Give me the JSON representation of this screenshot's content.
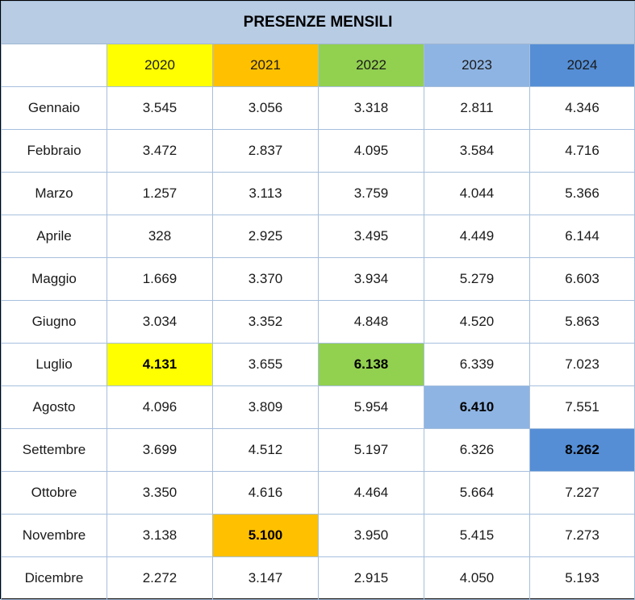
{
  "title": "PRESENZE MENSILI",
  "colors": {
    "title_bg": "#b8cce4",
    "year_2020": "#ffff00",
    "year_2021": "#ffc000",
    "year_2022": "#92d050",
    "year_2023": "#8eb4e3",
    "year_2024": "#558ed5",
    "grid": "#a6bfdd"
  },
  "years": [
    "2020",
    "2021",
    "2022",
    "2023",
    "2024"
  ],
  "rows": [
    {
      "month": "Gennaio",
      "values": [
        "3.545",
        "3.056",
        "3.318",
        "2.811",
        "4.346"
      ]
    },
    {
      "month": "Febbraio",
      "values": [
        "3.472",
        "2.837",
        "4.095",
        "3.584",
        "4.716"
      ]
    },
    {
      "month": "Marzo",
      "values": [
        "1.257",
        "3.113",
        "3.759",
        "4.044",
        "5.366"
      ]
    },
    {
      "month": "Aprile",
      "values": [
        "328",
        "2.925",
        "3.495",
        "4.449",
        "6.144"
      ]
    },
    {
      "month": "Maggio",
      "values": [
        "1.669",
        "3.370",
        "3.934",
        "5.279",
        "6.603"
      ]
    },
    {
      "month": "Giugno",
      "values": [
        "3.034",
        "3.352",
        "4.848",
        "4.520",
        "5.863"
      ]
    },
    {
      "month": "Luglio",
      "values": [
        "4.131",
        "3.655",
        "6.138",
        "6.339",
        "7.023"
      ]
    },
    {
      "month": "Agosto",
      "values": [
        "4.096",
        "3.809",
        "5.954",
        "6.410",
        "7.551"
      ]
    },
    {
      "month": "Settembre",
      "values": [
        "3.699",
        "4.512",
        "5.197",
        "6.326",
        "8.262"
      ]
    },
    {
      "month": "Ottobre",
      "values": [
        "3.350",
        "4.616",
        "4.464",
        "5.664",
        "7.227"
      ]
    },
    {
      "month": "Novembre",
      "values": [
        "3.138",
        "5.100",
        "3.950",
        "5.415",
        "7.273"
      ]
    },
    {
      "month": "Dicembre",
      "values": [
        "2.272",
        "3.147",
        "2.915",
        "4.050",
        "5.193"
      ]
    }
  ],
  "highlights": [
    {
      "month": "Luglio",
      "year": "2020"
    },
    {
      "month": "Novembre",
      "year": "2021"
    },
    {
      "month": "Luglio",
      "year": "2022"
    },
    {
      "month": "Agosto",
      "year": "2023"
    },
    {
      "month": "Settembre",
      "year": "2024"
    }
  ]
}
